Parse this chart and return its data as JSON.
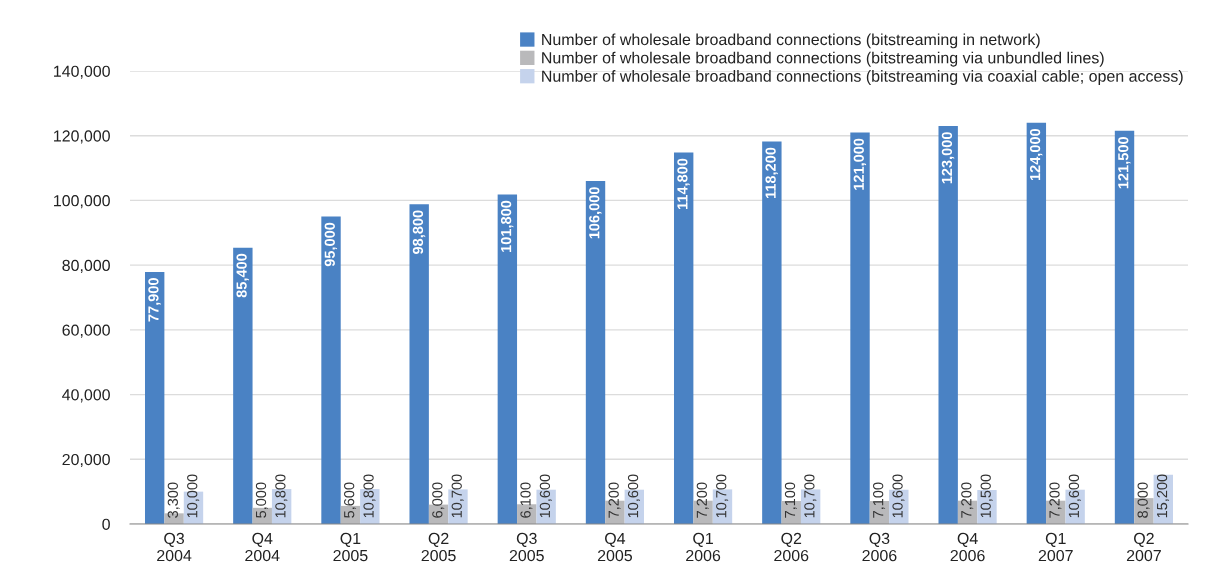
{
  "chart_data": {
    "type": "bar",
    "categories": [
      "Q3\n2004",
      "Q4\n2004",
      "Q1\n2005",
      "Q2\n2005",
      "Q3\n2005",
      "Q4\n2005",
      "Q1\n2006",
      "Q2\n2006",
      "Q3\n2006",
      "Q4\n2006",
      "Q1\n2007",
      "Q2\n2007"
    ],
    "series": [
      {
        "name": "Number of wholesale broadband connections (bitstreaming in network)",
        "color": "#4a82c4",
        "values": [
          77900,
          85400,
          95000,
          98800,
          101800,
          106000,
          114800,
          118200,
          121000,
          123000,
          124000,
          121500
        ],
        "value_labels": [
          "77,900",
          "85,400",
          "95,000",
          "98,800",
          "101,800",
          "106,000",
          "114,800",
          "118,200",
          "121,000",
          "123,000",
          "124,000",
          "121,500"
        ]
      },
      {
        "name": "Number of wholesale broadband connections (bitstreaming via unbundled lines)",
        "color": "#b9b9bb",
        "values": [
          3300,
          5000,
          5600,
          6000,
          6100,
          7200,
          7200,
          7100,
          7100,
          7200,
          7200,
          8000
        ],
        "value_labels": [
          "3,300",
          "5,000",
          "5,600",
          "6,000",
          "6,100",
          "7,200",
          "7,200",
          "7,100",
          "7,100",
          "7,200",
          "7,200",
          "8,000"
        ]
      },
      {
        "name": "Number of wholesale broadband connections (bitstreaming via coaxial cable; open access)",
        "color": "#c5d3ec",
        "values": [
          10000,
          10800,
          10800,
          10700,
          10600,
          10600,
          10700,
          10700,
          10600,
          10500,
          10600,
          15200
        ],
        "value_labels": [
          "10,000",
          "10,800",
          "10,800",
          "10,700",
          "10,600",
          "10,600",
          "10,700",
          "10,700",
          "10,600",
          "10,500",
          "10,600",
          "15,200"
        ]
      }
    ],
    "ylim": [
      0,
      140000
    ],
    "yticks": [
      0,
      {
        "value": 20000,
        "label": "20,000"
      },
      {
        "value": 40000,
        "label": "40,000"
      },
      {
        "value": 60000,
        "label": "60,000"
      },
      {
        "value": 80000,
        "label": "80,000"
      },
      {
        "value": 100000,
        "label": "100,000"
      },
      {
        "value": 120000,
        "label": "120,000"
      },
      {
        "value": 140000,
        "label": "140,000"
      }
    ],
    "grid": "y",
    "legend": "top right"
  }
}
